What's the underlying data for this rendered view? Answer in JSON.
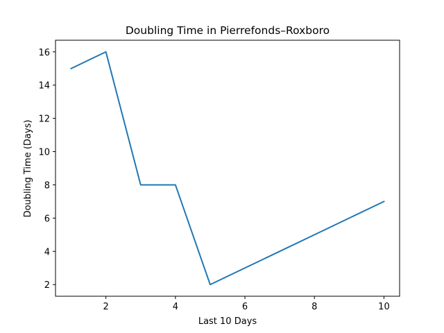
{
  "chart_data": {
    "type": "line",
    "title": "Doubling Time in  Pierrefonds–Roxboro",
    "xlabel": "Last 10 Days",
    "ylabel": "Doubling Time (Days)",
    "xlim": [
      0.55,
      10.45
    ],
    "ylim": [
      1.3,
      16.7
    ],
    "xticks": [
      2,
      4,
      6,
      8,
      10
    ],
    "yticks": [
      2,
      4,
      6,
      8,
      10,
      12,
      14,
      16
    ],
    "grid": false,
    "series": [
      {
        "color": "#1f77b4",
        "x": [
          1,
          2,
          3,
          4,
          5,
          6,
          7,
          8,
          9,
          10
        ],
        "y": [
          15,
          16,
          8,
          8,
          2,
          3,
          4,
          5,
          6,
          7
        ]
      }
    ]
  }
}
